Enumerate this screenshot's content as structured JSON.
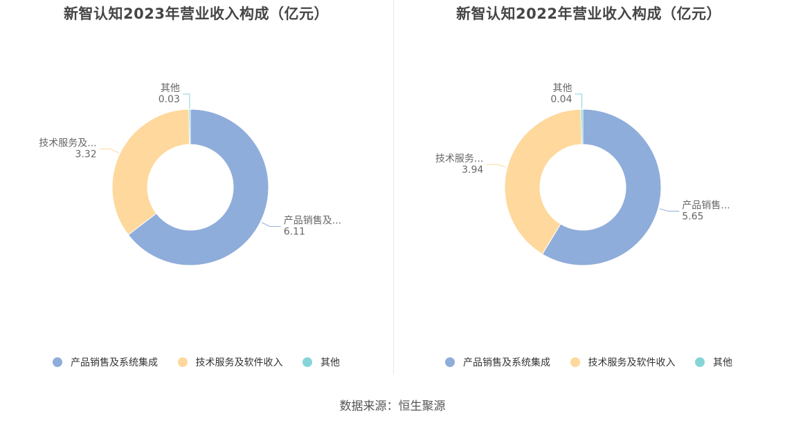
{
  "colors": {
    "product": "#8fadda",
    "service": "#fed89c",
    "other": "#85d5d8"
  },
  "legend": [
    "产品销售及系统集成",
    "技术服务及软件收入",
    "其他"
  ],
  "source": "数据来源：恒生聚源",
  "chart_data": [
    {
      "type": "pie",
      "title": "新智认知2023年营业收入构成（亿元）",
      "slices": [
        {
          "name": "产品销售及系统集成",
          "short_label": "产品销售及...",
          "value": 6.11,
          "value_label": "6.11"
        },
        {
          "name": "技术服务及软件收入",
          "short_label": "技术服务及...",
          "value": 3.32,
          "value_label": "3.32"
        },
        {
          "name": "其他",
          "short_label": "其他",
          "value": 0.03,
          "value_label": "0.03"
        }
      ]
    },
    {
      "type": "pie",
      "title": "新智认知2022年营业收入构成（亿元）",
      "slices": [
        {
          "name": "产品销售及系统集成",
          "short_label": "产品销售...",
          "value": 5.65,
          "value_label": "5.65"
        },
        {
          "name": "技术服务及软件收入",
          "short_label": "技术服务...",
          "value": 3.94,
          "value_label": "3.94"
        },
        {
          "name": "其他",
          "short_label": "其他",
          "value": 0.04,
          "value_label": "0.04"
        }
      ]
    }
  ]
}
